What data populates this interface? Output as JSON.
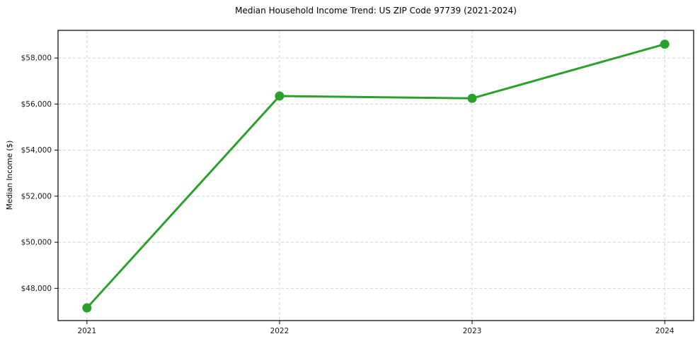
{
  "chart_data": {
    "type": "line",
    "title": "Median Household Income Trend: US ZIP Code 97739 (2021-2024)",
    "xlabel": "",
    "ylabel": "Median Income ($)",
    "categories": [
      "2021",
      "2022",
      "2023",
      "2024"
    ],
    "x": [
      2021,
      2022,
      2023,
      2024
    ],
    "series": [
      {
        "name": "Median Household Income",
        "values": [
          47150,
          56350,
          56250,
          58600
        ]
      }
    ],
    "yticks": [
      48000,
      50000,
      52000,
      54000,
      56000,
      58000
    ],
    "ytick_labels": [
      "$48,000",
      "$50,000",
      "$52,000",
      "$54,000",
      "$56,000",
      "$58,000"
    ],
    "xlim": [
      2020.85,
      2024.15
    ],
    "ylim": [
      46600,
      59200
    ],
    "grid": true,
    "legend": "none",
    "colors": {
      "line": "#2ca02c",
      "marker": "#2ca02c",
      "grid": "#cccccc",
      "spine": "#000000",
      "background": "#ffffff",
      "text": "#000000"
    }
  }
}
